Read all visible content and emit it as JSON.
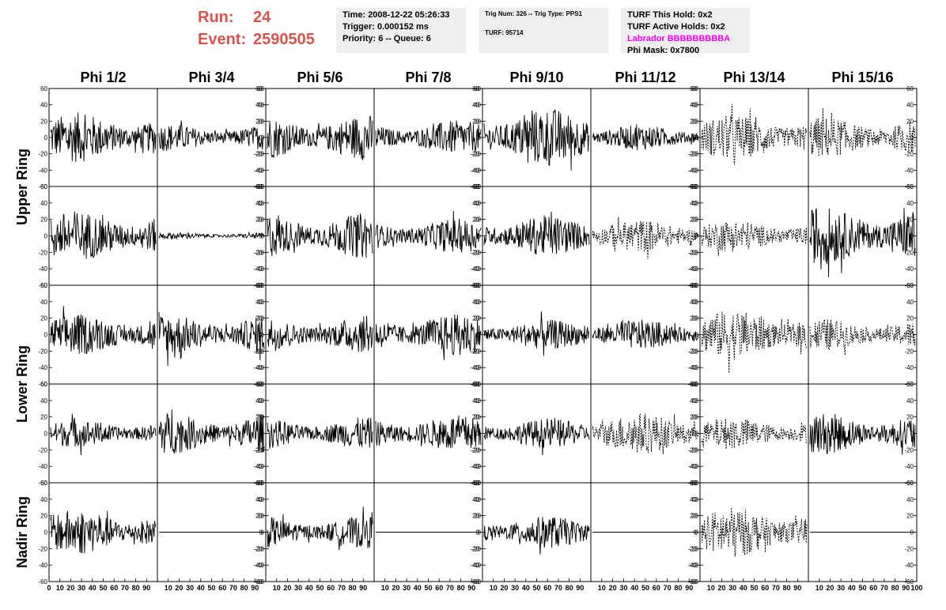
{
  "header": {
    "run_label": "Run:",
    "run_value": "24",
    "event_label": "Event:",
    "event_value": "2590505",
    "time": "Time: 2008-12-22 05:26:33",
    "trigger": "Trigger: 0.000152 ms",
    "priority": "Priority: 6 -- Queue: 6",
    "trig_num": "Trig Num: 326 -- Trig Type: PPS1",
    "turf": "TURF: 95714",
    "turf_this_hold": "TURF This Hold: 0x2",
    "turf_active_holds": "TURF Active Holds: 0x2",
    "labrador": "Labrador BBBBBBBBBA",
    "phi_mask": "Phi Mask: 0x7800"
  },
  "colors": {
    "title_red": "#d9534f",
    "labrador_magenta": "#ff00ff",
    "info_bg": "#eeeeee"
  },
  "chart_data": {
    "type": "line",
    "columns": [
      "Phi 1/2",
      "Phi 3/4",
      "Phi 5/6",
      "Phi 7/8",
      "Phi 9/10",
      "Phi 11/12",
      "Phi 13/14",
      "Phi 15/16"
    ],
    "rows": [
      "Upper Ring",
      "Upper Ring",
      "Lower Ring",
      "Lower Ring",
      "Nadir Ring"
    ],
    "row_labels": [
      "Upper Ring",
      "Lower Ring",
      "Nadir Ring"
    ],
    "ylim": [
      -60,
      60
    ],
    "xlim": [
      0,
      100
    ],
    "y_ticks": [
      -60,
      -40,
      -20,
      0,
      20,
      40,
      60
    ],
    "x_ticks": [
      0,
      10,
      20,
      30,
      40,
      50,
      60,
      70,
      80,
      90,
      100
    ],
    "x_axis_labels": [
      "0",
      "10",
      "20",
      "30",
      "40",
      "50",
      "60",
      "70",
      "80",
      "90",
      "100"
    ],
    "y_axis_labels": [
      "60",
      "40",
      "20",
      "0",
      "-20",
      "-40",
      "-60"
    ],
    "panels": [
      [
        {
          "amp": 22,
          "style": "solid"
        },
        {
          "amp": 12,
          "style": "solid"
        },
        {
          "amp": 20,
          "style": "solid"
        },
        {
          "amp": 15,
          "style": "solid"
        },
        {
          "amp": 26,
          "style": "solid"
        },
        {
          "amp": 11,
          "style": "solid"
        },
        {
          "amp": 20,
          "style": "dashed"
        },
        {
          "amp": 18,
          "style": "dashed"
        }
      ],
      [
        {
          "amp": 22,
          "style": "solid"
        },
        {
          "amp": 3,
          "style": "solid"
        },
        {
          "amp": 20,
          "style": "solid"
        },
        {
          "amp": 15,
          "style": "solid"
        },
        {
          "amp": 18,
          "style": "solid"
        },
        {
          "amp": 14,
          "style": "dashed"
        },
        {
          "amp": 14,
          "style": "dashed"
        },
        {
          "amp": 25,
          "style": "solid"
        }
      ],
      [
        {
          "amp": 18,
          "style": "solid"
        },
        {
          "amp": 18,
          "style": "solid"
        },
        {
          "amp": 16,
          "style": "solid"
        },
        {
          "amp": 18,
          "style": "solid"
        },
        {
          "amp": 13,
          "style": "solid"
        },
        {
          "amp": 13,
          "style": "solid"
        },
        {
          "amp": 22,
          "style": "dashed"
        },
        {
          "amp": 14,
          "style": "dashed"
        }
      ],
      [
        {
          "amp": 12,
          "style": "solid"
        },
        {
          "amp": 18,
          "style": "solid"
        },
        {
          "amp": 14,
          "style": "solid"
        },
        {
          "amp": 16,
          "style": "solid"
        },
        {
          "amp": 13,
          "style": "solid"
        },
        {
          "amp": 18,
          "style": "dashed"
        },
        {
          "amp": 14,
          "style": "dashed"
        },
        {
          "amp": 18,
          "style": "solid"
        }
      ],
      [
        {
          "amp": 20,
          "style": "solid"
        },
        {
          "amp": 0,
          "style": "flat"
        },
        {
          "amp": 14,
          "style": "solid"
        },
        {
          "amp": 0,
          "style": "flat"
        },
        {
          "amp": 14,
          "style": "solid"
        },
        {
          "amp": 0,
          "style": "flat"
        },
        {
          "amp": 22,
          "style": "dashed"
        },
        {
          "amp": 0,
          "style": "flat"
        }
      ]
    ]
  }
}
